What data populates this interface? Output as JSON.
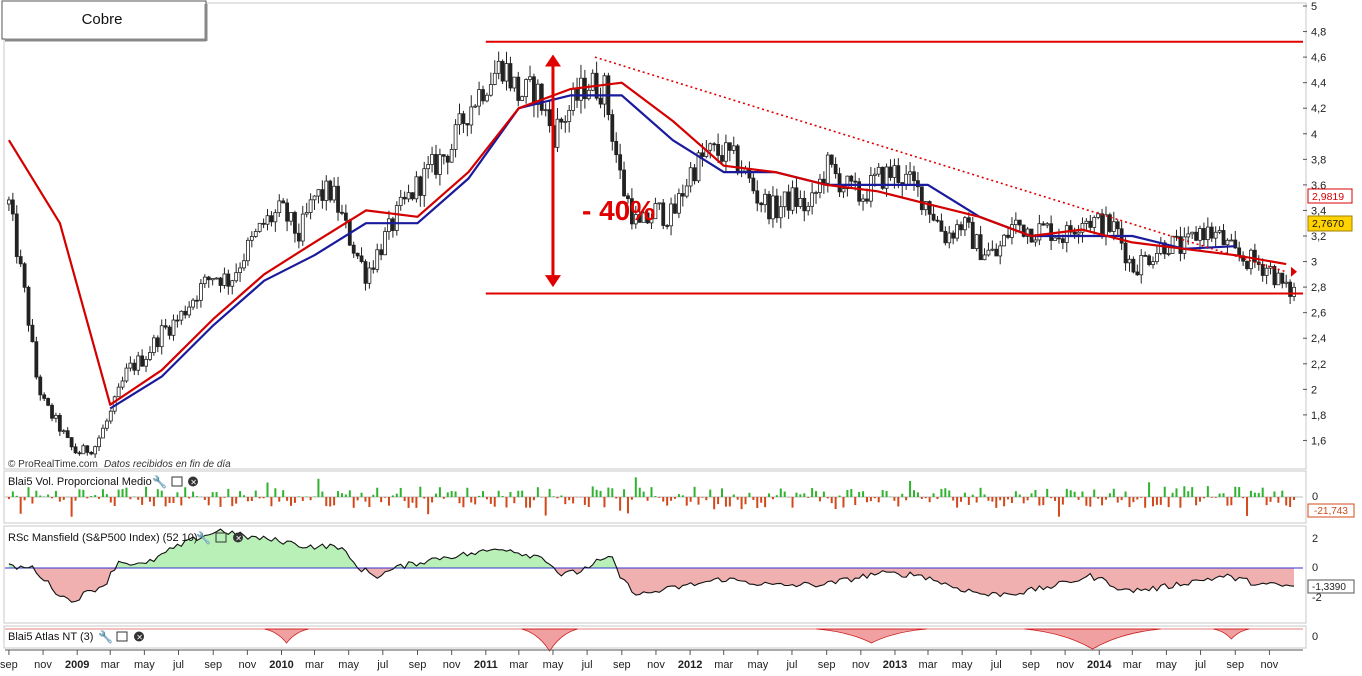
{
  "instrument_label": "Cobre",
  "watermark": "© ProRealTime.com",
  "watermark_note": "Datos recibidos en fin de día",
  "annotation": {
    "text": "- 40%"
  },
  "colors": {
    "candle_body": "#222222",
    "ma_fast": "#1a1a9c",
    "ma_slow": "#d40000",
    "annotation": "#e00000",
    "vol_pos": "#2db32d",
    "vol_neg": "#d2481a",
    "rs_pos_fill": "#b8f0b8",
    "rs_neg_fill": "#f0b0b0",
    "atlas_fill": "#f0a0a0",
    "last_price_badge": "#ffd200"
  },
  "price_panel": {
    "y_ticks": [
      "5",
      "4,8",
      "4,6",
      "4,4",
      "4,2",
      "4",
      "3,8",
      "3,6",
      "3,4",
      "3,2",
      "3",
      "2,8",
      "2,6",
      "2,4",
      "2,2",
      "2",
      "1,8",
      "1,6"
    ],
    "badges": {
      "ma_slow": "2,9819",
      "last_price": "2,7670"
    }
  },
  "volume_panel": {
    "title": "Blai5 Vol. Proporcional Medio",
    "zero_label": "0",
    "value_label": "-21,743"
  },
  "rs_panel": {
    "title": "RSc Mansfield (S&P500 Index) (52 10)",
    "ticks": [
      "2",
      "0",
      "-2"
    ],
    "value_label": "-1,3390"
  },
  "atlas_panel": {
    "title": "Blai5 Atlas NT (3)",
    "zero_label": "0"
  },
  "x_axis": {
    "labels": [
      "sep",
      "nov",
      "2009",
      "mar",
      "may",
      "jul",
      "sep",
      "nov",
      "2010",
      "mar",
      "may",
      "jul",
      "sep",
      "nov",
      "2011",
      "mar",
      "may",
      "jul",
      "sep",
      "nov",
      "2012",
      "mar",
      "may",
      "jul",
      "sep",
      "nov",
      "2013",
      "mar",
      "may",
      "jul",
      "sep",
      "nov",
      "2014",
      "mar",
      "may",
      "jul",
      "sep",
      "nov"
    ]
  },
  "chart_data": {
    "type": "candlestick",
    "title": "Cobre",
    "x_axis_type": "date",
    "ylim": [
      1.4,
      5.0
    ],
    "series": [
      {
        "name": "",
        "kind": "close",
        "points": [
          [
            "2008-09-01",
            3.45
          ],
          [
            "2008-10-01",
            2.7
          ],
          [
            "2008-10-20",
            2.1
          ],
          [
            "2008-11-01",
            1.9
          ],
          [
            "2008-12-01",
            1.7
          ],
          [
            "2008-12-20",
            1.55
          ],
          [
            "2009-01-01",
            1.5
          ],
          [
            "2009-02-01",
            1.55
          ],
          [
            "2009-03-01",
            1.8
          ],
          [
            "2009-04-01",
            2.15
          ],
          [
            "2009-05-01",
            2.25
          ],
          [
            "2009-06-01",
            2.45
          ],
          [
            "2009-07-01",
            2.55
          ],
          [
            "2009-08-01",
            2.75
          ],
          [
            "2009-09-01",
            2.9
          ],
          [
            "2009-10-01",
            2.85
          ],
          [
            "2009-11-01",
            3.1
          ],
          [
            "2009-12-01",
            3.3
          ],
          [
            "2010-01-01",
            3.4
          ],
          [
            "2010-02-01",
            3.2
          ],
          [
            "2010-03-01",
            3.5
          ],
          [
            "2010-04-01",
            3.55
          ],
          [
            "2010-05-01",
            3.2
          ],
          [
            "2010-06-01",
            2.9
          ],
          [
            "2010-07-01",
            3.15
          ],
          [
            "2010-08-01",
            3.4
          ],
          [
            "2010-09-01",
            3.6
          ],
          [
            "2010-10-01",
            3.75
          ],
          [
            "2010-11-01",
            3.9
          ],
          [
            "2010-12-01",
            4.2
          ],
          [
            "2011-01-01",
            4.4
          ],
          [
            "2011-02-01",
            4.55
          ],
          [
            "2011-03-01",
            4.3
          ],
          [
            "2011-04-01",
            4.35
          ],
          [
            "2011-05-01",
            4.0
          ],
          [
            "2011-06-01",
            4.2
          ],
          [
            "2011-07-01",
            4.4
          ],
          [
            "2011-08-01",
            4.35
          ],
          [
            "2011-09-01",
            3.6
          ],
          [
            "2011-10-01",
            3.25
          ],
          [
            "2011-11-01",
            3.4
          ],
          [
            "2011-12-01",
            3.35
          ],
          [
            "2012-01-01",
            3.7
          ],
          [
            "2012-02-01",
            3.85
          ],
          [
            "2012-03-01",
            3.85
          ],
          [
            "2012-04-01",
            3.75
          ],
          [
            "2012-05-01",
            3.5
          ],
          [
            "2012-06-01",
            3.4
          ],
          [
            "2012-07-01",
            3.5
          ],
          [
            "2012-08-01",
            3.4
          ],
          [
            "2012-09-01",
            3.75
          ],
          [
            "2012-10-01",
            3.6
          ],
          [
            "2012-11-01",
            3.5
          ],
          [
            "2012-12-01",
            3.65
          ],
          [
            "2013-01-01",
            3.7
          ],
          [
            "2013-02-01",
            3.6
          ],
          [
            "2013-03-01",
            3.45
          ],
          [
            "2013-04-01",
            3.2
          ],
          [
            "2013-05-01",
            3.3
          ],
          [
            "2013-06-01",
            3.1
          ],
          [
            "2013-07-01",
            3.05
          ],
          [
            "2013-08-01",
            3.3
          ],
          [
            "2013-09-01",
            3.25
          ],
          [
            "2013-10-01",
            3.25
          ],
          [
            "2013-11-01",
            3.2
          ],
          [
            "2013-12-01",
            3.35
          ],
          [
            "2014-01-01",
            3.3
          ],
          [
            "2014-02-01",
            3.25
          ],
          [
            "2014-03-01",
            2.95
          ],
          [
            "2014-04-01",
            3.05
          ],
          [
            "2014-05-01",
            3.15
          ],
          [
            "2014-06-01",
            3.1
          ],
          [
            "2014-07-01",
            3.25
          ],
          [
            "2014-08-01",
            3.2
          ],
          [
            "2014-09-01",
            3.05
          ],
          [
            "2014-10-01",
            3.0
          ],
          [
            "2014-11-01",
            2.95
          ],
          [
            "2014-12-01",
            2.77
          ]
        ]
      },
      {
        "name": "",
        "kind": "moving-average",
        "color": "#1a1a9c",
        "points": [
          [
            "2009-03-01",
            1.85
          ],
          [
            "2009-06-01",
            2.1
          ],
          [
            "2009-09-01",
            2.5
          ],
          [
            "2009-12-01",
            2.85
          ],
          [
            "2010-03-01",
            3.05
          ],
          [
            "2010-06-01",
            3.3
          ],
          [
            "2010-09-01",
            3.3
          ],
          [
            "2010-12-01",
            3.65
          ],
          [
            "2011-03-01",
            4.2
          ],
          [
            "2011-06-01",
            4.3
          ],
          [
            "2011-09-01",
            4.3
          ],
          [
            "2011-12-01",
            3.95
          ],
          [
            "2012-03-01",
            3.7
          ],
          [
            "2012-06-01",
            3.7
          ],
          [
            "2012-09-01",
            3.6
          ],
          [
            "2012-12-01",
            3.6
          ],
          [
            "2013-03-01",
            3.6
          ],
          [
            "2013-06-01",
            3.35
          ],
          [
            "2013-09-01",
            3.2
          ],
          [
            "2013-12-01",
            3.2
          ],
          [
            "2014-03-01",
            3.2
          ],
          [
            "2014-06-01",
            3.1
          ],
          [
            "2014-09-01",
            3.12
          ]
        ]
      },
      {
        "name": "",
        "kind": "moving-average",
        "color": "#d40000",
        "points": [
          [
            "2008-09-01",
            3.95
          ],
          [
            "2008-12-01",
            3.3
          ],
          [
            "2009-03-01",
            1.88
          ],
          [
            "2009-06-01",
            2.15
          ],
          [
            "2009-09-01",
            2.55
          ],
          [
            "2009-12-01",
            2.9
          ],
          [
            "2010-03-01",
            3.15
          ],
          [
            "2010-06-01",
            3.4
          ],
          [
            "2010-09-01",
            3.35
          ],
          [
            "2010-12-01",
            3.7
          ],
          [
            "2011-03-01",
            4.2
          ],
          [
            "2011-06-01",
            4.35
          ],
          [
            "2011-09-01",
            4.4
          ],
          [
            "2011-12-01",
            4.1
          ],
          [
            "2012-03-01",
            3.75
          ],
          [
            "2012-06-01",
            3.7
          ],
          [
            "2012-09-01",
            3.6
          ],
          [
            "2012-12-01",
            3.55
          ],
          [
            "2013-03-01",
            3.45
          ],
          [
            "2013-06-01",
            3.35
          ],
          [
            "2013-09-01",
            3.2
          ],
          [
            "2013-12-01",
            3.25
          ],
          [
            "2014-03-01",
            3.15
          ],
          [
            "2014-06-01",
            3.1
          ],
          [
            "2014-09-01",
            3.05
          ],
          [
            "2014-12-01",
            2.98
          ]
        ]
      }
    ],
    "annotations": [
      {
        "type": "horizontal-line",
        "y": 4.72,
        "x": [
          "2011-01-01",
          "2014-12-31"
        ]
      },
      {
        "type": "horizontal-line",
        "y": 2.75,
        "x": [
          "2011-01-01",
          "2014-12-31"
        ]
      },
      {
        "type": "dotted-trendline",
        "from": [
          "2011-07-15",
          4.6
        ],
        "to": [
          "2014-12-01",
          2.92
        ]
      },
      {
        "type": "double-arrow",
        "x": "2011-05-01",
        "from": 4.62,
        "to": 2.8,
        "text": "- 40%"
      }
    ],
    "last_close": 2.767,
    "ma_slow_last": 2.9819
  }
}
